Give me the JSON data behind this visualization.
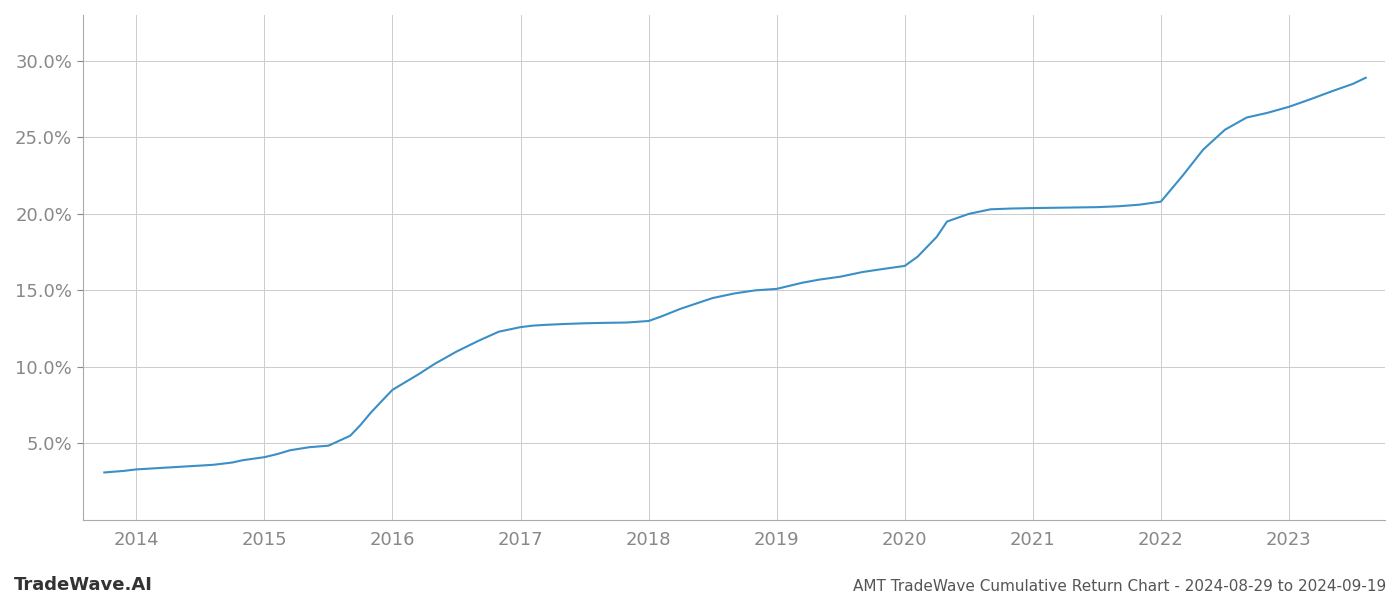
{
  "title": "AMT TradeWave Cumulative Return Chart - 2024-08-29 to 2024-09-19",
  "watermark": "TradeWave.AI",
  "x_years": [
    2014,
    2015,
    2016,
    2017,
    2018,
    2019,
    2020,
    2021,
    2022,
    2023
  ],
  "x_data": [
    2013.75,
    2013.9,
    2014.0,
    2014.2,
    2014.4,
    2014.6,
    2014.75,
    2014.83,
    2015.0,
    2015.1,
    2015.2,
    2015.35,
    2015.5,
    2015.67,
    2015.75,
    2015.83,
    2015.92,
    2016.0,
    2016.1,
    2016.2,
    2016.33,
    2016.5,
    2016.67,
    2016.83,
    2017.0,
    2017.1,
    2017.2,
    2017.33,
    2017.5,
    2017.67,
    2017.83,
    2018.0,
    2018.1,
    2018.25,
    2018.5,
    2018.67,
    2018.83,
    2019.0,
    2019.1,
    2019.2,
    2019.33,
    2019.5,
    2019.67,
    2019.83,
    2020.0,
    2020.1,
    2020.25,
    2020.33,
    2020.5,
    2020.67,
    2020.83,
    2021.0,
    2021.17,
    2021.33,
    2021.5,
    2021.67,
    2021.83,
    2022.0,
    2022.17,
    2022.33,
    2022.5,
    2022.67,
    2022.83,
    2023.0,
    2023.17,
    2023.33,
    2023.5,
    2023.6
  ],
  "y_data": [
    3.1,
    3.2,
    3.3,
    3.4,
    3.5,
    3.6,
    3.75,
    3.9,
    4.1,
    4.3,
    4.55,
    4.75,
    4.85,
    5.5,
    6.2,
    7.0,
    7.8,
    8.5,
    9.0,
    9.5,
    10.2,
    11.0,
    11.7,
    12.3,
    12.6,
    12.7,
    12.75,
    12.8,
    12.85,
    12.88,
    12.9,
    13.0,
    13.3,
    13.8,
    14.5,
    14.8,
    15.0,
    15.1,
    15.3,
    15.5,
    15.7,
    15.9,
    16.2,
    16.4,
    16.6,
    17.2,
    18.5,
    19.5,
    20.0,
    20.3,
    20.35,
    20.38,
    20.4,
    20.42,
    20.44,
    20.5,
    20.6,
    20.8,
    22.5,
    24.2,
    25.5,
    26.3,
    26.6,
    27.0,
    27.5,
    28.0,
    28.5,
    28.9
  ],
  "line_color": "#3a8fc7",
  "line_width": 1.5,
  "background_color": "#ffffff",
  "grid_color": "#cccccc",
  "ylim": [
    0,
    33
  ],
  "yticks": [
    5.0,
    10.0,
    15.0,
    20.0,
    25.0,
    30.0
  ],
  "xlim": [
    2013.58,
    2023.75
  ],
  "title_fontsize": 11,
  "watermark_fontsize": 13,
  "tick_fontsize": 13,
  "title_color": "#555555",
  "watermark_color": "#aaaaaa",
  "tick_color": "#888888"
}
